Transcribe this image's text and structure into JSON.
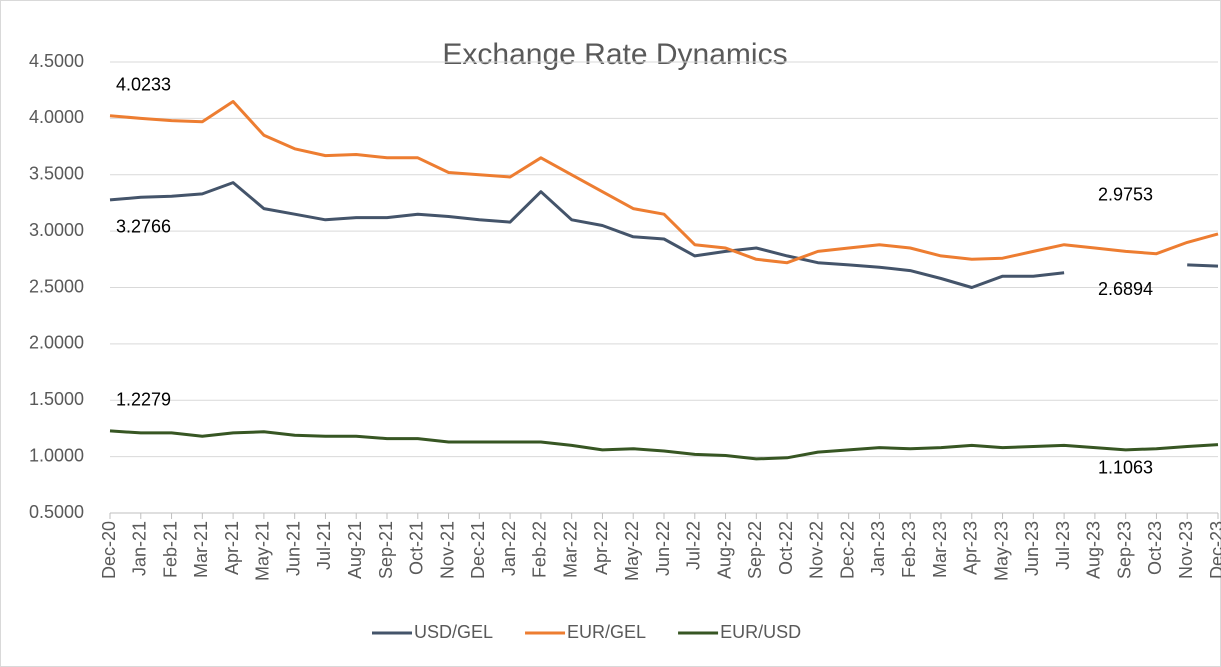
{
  "chart_data": {
    "type": "line",
    "title": "Exchange Rate Dynamics",
    "categories": [
      "Dec-20",
      "Jan-21",
      "Feb-21",
      "Mar-21",
      "Apr-21",
      "May-21",
      "Jun-21",
      "Jul-21",
      "Aug-21",
      "Sep-21",
      "Oct-21",
      "Nov-21",
      "Dec-21",
      "Jan-22",
      "Feb-22",
      "Mar-22",
      "Apr-22",
      "May-22",
      "Jun-22",
      "Jul-22",
      "Aug-22",
      "Sep-22",
      "Oct-22",
      "Nov-22",
      "Dec-22",
      "Jan-23",
      "Feb-23",
      "Mar-23",
      "Apr-23",
      "May-23",
      "Jun-23",
      "Jul-23",
      "Aug-23",
      "Sep-23",
      "Oct-23",
      "Nov-23",
      "Dec-23"
    ],
    "series": [
      {
        "name": "USD/GEL",
        "color": "#44546a",
        "values": [
          3.2766,
          3.3,
          3.31,
          3.33,
          3.43,
          3.2,
          3.15,
          3.1,
          3.12,
          3.12,
          3.15,
          3.13,
          3.1,
          3.08,
          3.35,
          3.1,
          3.05,
          2.95,
          2.93,
          2.78,
          2.82,
          2.85,
          2.78,
          2.72,
          2.7,
          2.68,
          2.65,
          2.58,
          2.5,
          2.6,
          2.6,
          2.63,
          null,
          null,
          null,
          2.7,
          2.6894
        ]
      },
      {
        "name": "EUR/GEL",
        "color": "#ed7d31",
        "values": [
          4.0233,
          4.0,
          3.98,
          3.97,
          4.15,
          3.85,
          3.73,
          3.67,
          3.68,
          3.65,
          3.65,
          3.52,
          3.5,
          3.48,
          3.65,
          3.5,
          3.35,
          3.2,
          3.15,
          2.88,
          2.85,
          2.75,
          2.72,
          2.82,
          2.85,
          2.88,
          2.85,
          2.78,
          2.75,
          2.76,
          2.82,
          2.88,
          2.85,
          2.82,
          2.8,
          2.9,
          2.9753
        ]
      },
      {
        "name": "EUR/USD",
        "color": "#375623",
        "values": [
          1.2279,
          1.21,
          1.21,
          1.18,
          1.21,
          1.22,
          1.19,
          1.18,
          1.18,
          1.16,
          1.16,
          1.13,
          1.13,
          1.13,
          1.13,
          1.1,
          1.06,
          1.07,
          1.05,
          1.02,
          1.01,
          0.98,
          0.99,
          1.04,
          1.06,
          1.08,
          1.07,
          1.08,
          1.1,
          1.08,
          1.09,
          1.1,
          1.08,
          1.06,
          1.07,
          1.09,
          1.1063
        ]
      }
    ],
    "ylim": [
      0.5,
      4.5
    ],
    "yticks": [
      {
        "value": 0.5,
        "label": "0.5000"
      },
      {
        "value": 1.0,
        "label": "1.0000"
      },
      {
        "value": 1.5,
        "label": "1.5000"
      },
      {
        "value": 2.0,
        "label": "2.0000"
      },
      {
        "value": 2.5,
        "label": "2.5000"
      },
      {
        "value": 3.0,
        "label": "3.0000"
      },
      {
        "value": 3.5,
        "label": "3.5000"
      },
      {
        "value": 4.0,
        "label": "4.0000"
      },
      {
        "value": 4.5,
        "label": "4.5000"
      }
    ],
    "grid": true,
    "legend": "bottom"
  }
}
